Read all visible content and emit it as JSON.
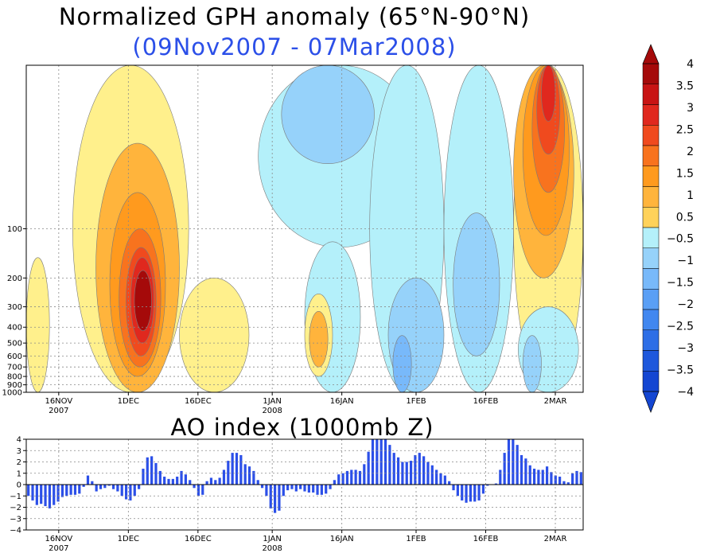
{
  "title": "Normalized GPH anomaly (65°N-90°N)",
  "subtitle": "(09Nov2007 - 07Mar2008)",
  "ao_title": "AO index (1000mb Z)",
  "colors": {
    "title": "#000000",
    "subtitle": "#2b4fe8",
    "bars": "#2b4fe8",
    "contour": "#000000"
  },
  "chart_data": [
    {
      "type": "heatmap",
      "title": "Normalized GPH anomaly (65°N-90°N)",
      "subtitle": "(09Nov2007 - 07Mar2008)",
      "x_range": [
        "09Nov2007",
        "07Mar2008"
      ],
      "y_scale": "log",
      "y_reversed": true,
      "y_range": [
        1000,
        10
      ],
      "xticks": [
        {
          "date": "16NOV",
          "year": "2007"
        },
        {
          "date": "1DEC",
          "year": ""
        },
        {
          "date": "16DEC",
          "year": ""
        },
        {
          "date": "1JAN",
          "year": "2008"
        },
        {
          "date": "16JAN",
          "year": ""
        },
        {
          "date": "1FEB",
          "year": ""
        },
        {
          "date": "16FEB",
          "year": ""
        },
        {
          "date": "2MAR",
          "year": ""
        }
      ],
      "yticks": [
        "100",
        "200",
        "300",
        "400",
        "500",
        "600",
        "700",
        "800",
        "900",
        "1000"
      ],
      "grid": true,
      "colorbar": {
        "labels": [
          "4",
          "3.5",
          "3",
          "2.5",
          "2",
          "1.5",
          "1",
          "0.5",
          "−0.5",
          "−1",
          "−1.5",
          "−2",
          "−2.5",
          "−3",
          "−3.5",
          "−4"
        ],
        "colors": [
          "#a50a0a",
          "#c81414",
          "#e0281e",
          "#f04a1e",
          "#f8731e",
          "#ff9a1e",
          "#ffb43c",
          "#ffd25a",
          "#fff08c",
          "#ffffff",
          "#b4f0fa",
          "#96d2fa",
          "#78b9fa",
          "#5a9ff5",
          "#4187f0",
          "#2d6ee6",
          "#1e58dc",
          "#1446d2"
        ]
      },
      "regions": [
        {
          "t0": 10,
          "t1": 35,
          "p0": 10,
          "p1": 1000,
          "level": 1
        },
        {
          "t0": 15,
          "t1": 33,
          "p0": 30,
          "p1": 1000,
          "level": 2
        },
        {
          "t0": 18,
          "t1": 30,
          "p0": 60,
          "p1": 800,
          "level": 3
        },
        {
          "t0": 20,
          "t1": 29,
          "p0": 100,
          "p1": 700,
          "level": 4
        },
        {
          "t0": 21.5,
          "t1": 28,
          "p0": 130,
          "p1": 600,
          "level": 5
        },
        {
          "t0": 22.5,
          "t1": 27.5,
          "p0": 150,
          "p1": 500,
          "level": 6
        },
        {
          "t0": 23.3,
          "t1": 27,
          "p0": 180,
          "p1": 420,
          "level": 7
        },
        {
          "t0": 0,
          "t1": 5,
          "p0": 150,
          "p1": 1000,
          "level": 1
        },
        {
          "t0": 33,
          "t1": 48,
          "p0": 200,
          "p1": 1000,
          "level": 1
        },
        {
          "t0": 50,
          "t1": 85,
          "p0": 10,
          "p1": 130,
          "level": -1
        },
        {
          "t0": 55,
          "t1": 75,
          "p0": 10,
          "p1": 40,
          "level": -2
        },
        {
          "t0": 60,
          "t1": 72,
          "p0": 120,
          "p1": 1000,
          "level": -1
        },
        {
          "t0": 60,
          "t1": 66,
          "p0": 250,
          "p1": 800,
          "level": 1
        },
        {
          "t0": 61,
          "t1": 65,
          "p0": 320,
          "p1": 700,
          "level": 2
        },
        {
          "t0": 74,
          "t1": 90,
          "p0": 10,
          "p1": 1000,
          "level": -1
        },
        {
          "t0": 78,
          "t1": 90,
          "p0": 200,
          "p1": 1000,
          "level": -2
        },
        {
          "t0": 79,
          "t1": 83,
          "p0": 450,
          "p1": 1000,
          "level": -3
        },
        {
          "t0": 90,
          "t1": 105,
          "p0": 10,
          "p1": 1000,
          "level": -1
        },
        {
          "t0": 92,
          "t1": 102,
          "p0": 80,
          "p1": 600,
          "level": -2
        },
        {
          "t0": 105,
          "t1": 120,
          "p0": 10,
          "p1": 1000,
          "level": 1
        },
        {
          "t0": 105,
          "t1": 118,
          "p0": 10,
          "p1": 200,
          "level": 2
        },
        {
          "t0": 107,
          "t1": 117,
          "p0": 10,
          "p1": 110,
          "level": 3
        },
        {
          "t0": 109,
          "t1": 116,
          "p0": 10,
          "p1": 60,
          "level": 4
        },
        {
          "t0": 110,
          "t1": 115,
          "p0": 10,
          "p1": 35,
          "level": 5
        },
        {
          "t0": 111,
          "t1": 114,
          "p0": 10,
          "p1": 22,
          "level": 6
        },
        {
          "t0": 106,
          "t1": 119,
          "p0": 300,
          "p1": 1000,
          "level": -1
        },
        {
          "t0": 107,
          "t1": 111,
          "p0": 450,
          "p1": 1000,
          "level": -2
        }
      ]
    },
    {
      "type": "bar",
      "title": "AO index (1000mb Z)",
      "x_range": [
        "09Nov2007",
        "07Mar2008"
      ],
      "xticks": [
        {
          "date": "16NOV",
          "year": "2007"
        },
        {
          "date": "1DEC",
          "year": ""
        },
        {
          "date": "16DEC",
          "year": ""
        },
        {
          "date": "1JAN",
          "year": "2008"
        },
        {
          "date": "16JAN",
          "year": ""
        },
        {
          "date": "1FEB",
          "year": ""
        },
        {
          "date": "16FEB",
          "year": ""
        },
        {
          "date": "2MAR",
          "year": ""
        }
      ],
      "ylim": [
        -4,
        4
      ],
      "yticks": [
        "4",
        "3",
        "2",
        "1",
        "0",
        "−1",
        "−2",
        "−3",
        "−4"
      ],
      "grid": true,
      "values": [
        -1.0,
        -1.4,
        -1.8,
        -1.7,
        -1.9,
        -2.1,
        -1.8,
        -1.5,
        -1.1,
        -1.0,
        -0.9,
        -0.9,
        -0.8,
        -0.2,
        0.8,
        0.3,
        -0.6,
        -0.4,
        -0.3,
        -0.1,
        -0.4,
        -0.6,
        -1.0,
        -1.3,
        -1.4,
        -1.0,
        -0.4,
        1.4,
        2.4,
        2.5,
        1.9,
        1.2,
        0.7,
        0.5,
        0.5,
        0.7,
        1.2,
        0.9,
        0.4,
        -0.3,
        -1.0,
        -0.9,
        0.3,
        0.6,
        0.4,
        0.6,
        1.3,
        2.1,
        2.8,
        2.8,
        2.6,
        1.8,
        1.6,
        1.2,
        0.4,
        -0.3,
        -1.0,
        -2.1,
        -2.5,
        -2.3,
        -1.0,
        -0.5,
        -0.4,
        -0.6,
        -0.4,
        -0.6,
        -0.7,
        -0.7,
        -0.9,
        -0.9,
        -0.8,
        -0.4,
        0.4,
        0.9,
        1.0,
        1.2,
        1.3,
        1.3,
        1.2,
        1.8,
        2.9,
        4.0,
        4.0,
        4.0,
        4.0,
        3.5,
        2.8,
        2.4,
        2.0,
        2.0,
        2.1,
        2.6,
        2.8,
        2.5,
        2.0,
        1.7,
        1.3,
        1.0,
        0.8,
        0.3,
        -0.5,
        -1.0,
        -1.4,
        -1.6,
        -1.5,
        -1.5,
        -1.4,
        -0.8,
        -0.1,
        0.0,
        0.1,
        1.3,
        2.8,
        4.0,
        4.0,
        3.5,
        2.6,
        2.3,
        1.7,
        1.4,
        1.3,
        1.3,
        1.6,
        1.1,
        0.8,
        0.7,
        0.3,
        0.2,
        1.0,
        1.2,
        1.1
      ]
    }
  ]
}
